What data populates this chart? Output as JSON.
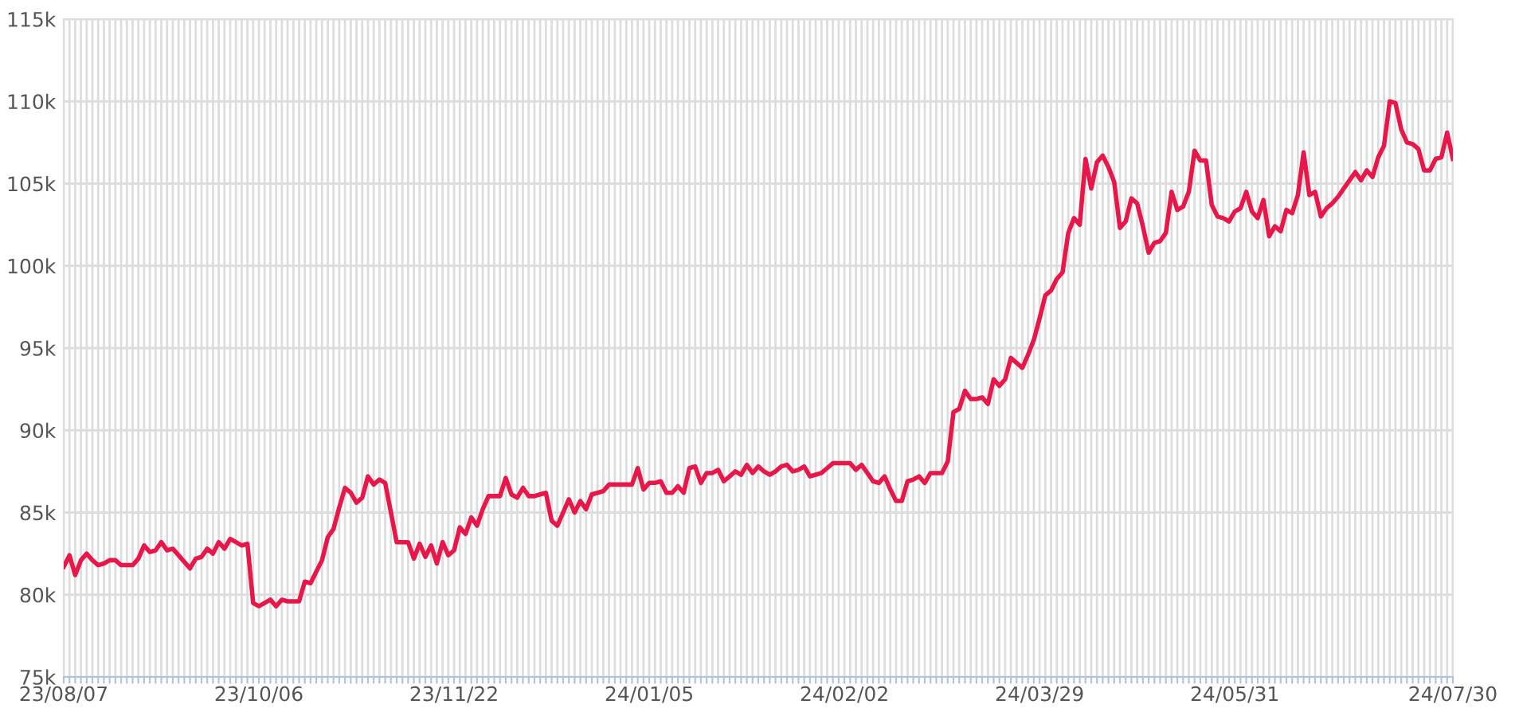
{
  "chart_data": {
    "type": "line",
    "categories": [
      "23/08/07",
      null,
      null,
      null,
      null,
      null,
      null,
      null,
      null,
      null,
      null,
      null,
      null,
      null,
      null,
      null,
      null,
      null,
      null,
      null,
      null,
      null,
      null,
      null,
      null,
      null,
      null,
      null,
      null,
      null,
      null,
      null,
      null,
      null,
      "23/10/06",
      null,
      null,
      null,
      null,
      null,
      null,
      null,
      null,
      null,
      null,
      null,
      null,
      null,
      null,
      null,
      null,
      null,
      null,
      null,
      null,
      null,
      null,
      null,
      null,
      null,
      null,
      null,
      null,
      null,
      null,
      null,
      null,
      null,
      "23/11/22",
      null,
      null,
      null,
      null,
      null,
      null,
      null,
      null,
      null,
      null,
      null,
      null,
      null,
      null,
      null,
      null,
      null,
      null,
      null,
      null,
      null,
      null,
      null,
      null,
      null,
      null,
      null,
      null,
      null,
      null,
      null,
      null,
      null,
      "24/01/05",
      null,
      null,
      null,
      null,
      null,
      null,
      null,
      null,
      null,
      null,
      null,
      null,
      null,
      null,
      null,
      null,
      null,
      null,
      null,
      null,
      null,
      null,
      null,
      null,
      null,
      null,
      null,
      null,
      null,
      null,
      null,
      null,
      null,
      "24/02/02",
      null,
      null,
      null,
      null,
      null,
      null,
      null,
      null,
      null,
      null,
      null,
      null,
      null,
      null,
      null,
      null,
      null,
      null,
      null,
      null,
      null,
      null,
      null,
      null,
      null,
      null,
      null,
      null,
      null,
      null,
      null,
      null,
      null,
      "24/03/29",
      null,
      null,
      null,
      null,
      null,
      null,
      null,
      null,
      null,
      null,
      null,
      null,
      null,
      null,
      null,
      null,
      null,
      null,
      null,
      null,
      null,
      null,
      null,
      null,
      null,
      null,
      null,
      null,
      null,
      null,
      null,
      null,
      null,
      "24/05/31",
      null,
      null,
      null,
      null,
      null,
      null,
      null,
      null,
      null,
      null,
      null,
      null,
      null,
      null,
      null,
      null,
      null,
      null,
      null,
      null,
      null,
      null,
      null,
      null,
      null,
      null,
      null,
      null,
      null,
      null,
      null,
      null,
      null,
      null,
      null,
      null,
      null,
      "24/07/30"
    ],
    "series": [
      {
        "color": "#e8174a",
        "values": [
          81.7,
          82.4,
          81.2,
          82.1,
          82.5,
          82.1,
          81.8,
          81.9,
          82.1,
          82.1,
          81.8,
          81.8,
          81.8,
          82.2,
          83.0,
          82.6,
          82.7,
          83.2,
          82.7,
          82.8,
          82.4,
          82.0,
          81.6,
          82.2,
          82.3,
          82.8,
          82.5,
          83.2,
          82.8,
          83.4,
          83.2,
          83.0,
          83.1,
          79.5,
          79.3,
          79.5,
          79.7,
          79.3,
          79.7,
          79.6,
          79.6,
          79.6,
          80.8,
          80.7,
          81.4,
          82.1,
          83.5,
          84.0,
          85.3,
          86.5,
          86.2,
          85.6,
          85.9,
          87.2,
          86.7,
          87.0,
          86.8,
          85.0,
          83.2,
          83.2,
          83.2,
          82.2,
          83.1,
          82.3,
          83.0,
          81.9,
          83.2,
          82.4,
          82.7,
          84.1,
          83.7,
          84.7,
          84.2,
          85.2,
          86.0,
          86.0,
          86.0,
          87.1,
          86.1,
          85.9,
          86.5,
          86.0,
          86.0,
          86.1,
          86.2,
          84.5,
          84.2,
          85.0,
          85.8,
          85.0,
          85.7,
          85.2,
          86.1,
          86.2,
          86.3,
          86.7,
          86.7,
          86.7,
          86.7,
          86.7,
          87.7,
          86.4,
          86.8,
          86.8,
          86.9,
          86.2,
          86.2,
          86.6,
          86.2,
          87.7,
          87.8,
          86.8,
          87.4,
          87.4,
          87.6,
          86.9,
          87.2,
          87.5,
          87.3,
          87.9,
          87.4,
          87.8,
          87.5,
          87.3,
          87.5,
          87.8,
          87.9,
          87.5,
          87.6,
          87.8,
          87.2,
          87.3,
          87.4,
          87.7,
          88.0,
          88.0,
          88.0,
          88.0,
          87.6,
          87.9,
          87.4,
          86.9,
          86.8,
          87.2,
          86.4,
          85.7,
          85.7,
          86.9,
          87.0,
          87.2,
          86.8,
          87.4,
          87.4,
          87.4,
          88.1,
          91.1,
          91.3,
          92.4,
          91.9,
          91.9,
          92.0,
          91.6,
          93.1,
          92.7,
          93.1,
          94.4,
          94.1,
          93.8,
          94.6,
          95.5,
          96.8,
          98.2,
          98.5,
          99.2,
          99.6,
          102.0,
          102.9,
          102.5,
          106.5,
          104.7,
          106.3,
          106.7,
          106.0,
          105.1,
          102.3,
          102.7,
          104.1,
          103.8,
          102.4,
          100.8,
          101.4,
          101.5,
          102.0,
          104.5,
          103.4,
          103.6,
          104.5,
          107.0,
          106.4,
          106.4,
          103.7,
          103.0,
          102.9,
          102.7,
          103.3,
          103.5,
          104.5,
          103.3,
          102.9,
          104.0,
          101.8,
          102.4,
          102.1,
          103.4,
          103.2,
          104.3,
          106.9,
          104.3,
          104.5,
          103.0,
          103.5,
          103.8,
          104.2,
          104.7,
          105.2,
          105.7,
          105.2,
          105.8,
          105.4,
          106.6,
          107.3,
          110.0,
          109.9,
          108.3,
          107.5,
          107.4,
          107.1,
          105.8,
          105.8,
          106.5,
          106.6,
          108.1,
          106.5
        ]
      }
    ],
    "ylim": [
      75,
      115
    ],
    "yticks": [
      {
        "value": 75,
        "label": "75k"
      },
      {
        "value": 80,
        "label": "80k"
      },
      {
        "value": 85,
        "label": "85k"
      },
      {
        "value": 90,
        "label": "90k"
      },
      {
        "value": 95,
        "label": "95k"
      },
      {
        "value": 100,
        "label": "100k"
      },
      {
        "value": 105,
        "label": "105k"
      },
      {
        "value": 110,
        "label": "110k"
      },
      {
        "value": 115,
        "label": "115k"
      }
    ],
    "grid": true,
    "marker": "none",
    "line_style": "solid"
  }
}
